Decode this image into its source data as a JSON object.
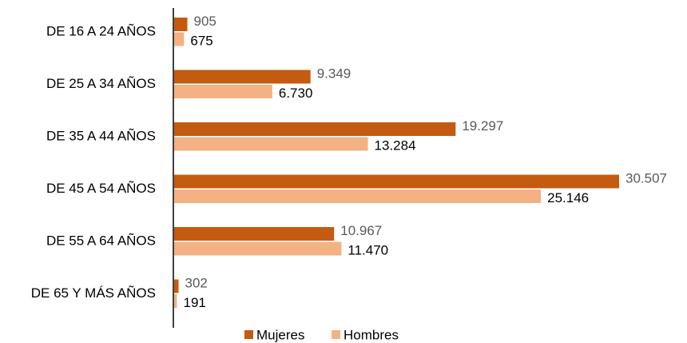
{
  "chart_data": {
    "type": "bar",
    "orientation": "horizontal",
    "categories": [
      "DE 16 A 24 AÑOS",
      "DE 25 A 34 AÑOS",
      "DE 35 A 44 AÑOS",
      "DE 45 A 54 AÑOS",
      "DE 55 A 64 AÑOS",
      "DE 65 Y MÁS AÑOS"
    ],
    "series": [
      {
        "name": "Mujeres",
        "color": "#c55a11",
        "values": [
          905,
          9349,
          19297,
          30507,
          10967,
          302
        ],
        "value_labels": [
          "905",
          "9.349",
          "19.297",
          "30.507",
          "10.967",
          "302"
        ]
      },
      {
        "name": "Hombres",
        "color": "#f4b183",
        "values": [
          675,
          6730,
          13284,
          25146,
          11470,
          191
        ],
        "value_labels": [
          "675",
          "6.730",
          "13.284",
          "25.146",
          "11.470",
          "191"
        ]
      }
    ],
    "legend": "bottom"
  }
}
